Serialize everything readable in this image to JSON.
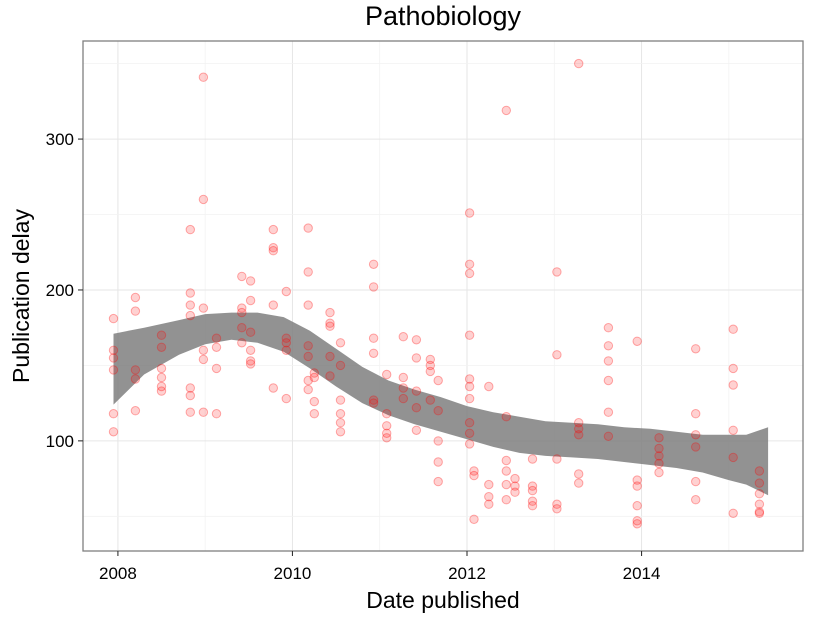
{
  "chart_data": {
    "type": "scatter",
    "title": "Pathobiology",
    "xlabel": "Date published",
    "ylabel": "Publication delay",
    "xlim": [
      2007.6,
      2015.85
    ],
    "ylim": [
      27,
      365
    ],
    "x_ticks": [
      2008,
      2010,
      2012,
      2014
    ],
    "x_tick_labels": [
      "2008",
      "2010",
      "2012",
      "2014"
    ],
    "y_ticks": [
      100,
      200,
      300
    ],
    "y_tick_labels": [
      "100",
      "200",
      "300"
    ],
    "grid": true,
    "point_color": "#ff0000",
    "ribbon_color": "#7f7f7f",
    "points": [
      [
        2007.95,
        181
      ],
      [
        2007.95,
        160
      ],
      [
        2007.95,
        155
      ],
      [
        2007.95,
        147
      ],
      [
        2007.95,
        118
      ],
      [
        2007.95,
        106
      ],
      [
        2008.2,
        195
      ],
      [
        2008.2,
        186
      ],
      [
        2008.2,
        147
      ],
      [
        2008.2,
        141
      ],
      [
        2008.2,
        120
      ],
      [
        2008.5,
        170
      ],
      [
        2008.5,
        162
      ],
      [
        2008.5,
        148
      ],
      [
        2008.5,
        142
      ],
      [
        2008.5,
        136
      ],
      [
        2008.5,
        133
      ],
      [
        2008.83,
        240
      ],
      [
        2008.83,
        198
      ],
      [
        2008.83,
        190
      ],
      [
        2008.83,
        183
      ],
      [
        2008.83,
        135
      ],
      [
        2008.83,
        130
      ],
      [
        2008.83,
        119
      ],
      [
        2008.98,
        341
      ],
      [
        2008.98,
        260
      ],
      [
        2008.98,
        188
      ],
      [
        2008.98,
        160
      ],
      [
        2008.98,
        154
      ],
      [
        2008.98,
        119
      ],
      [
        2009.13,
        168
      ],
      [
        2009.13,
        162
      ],
      [
        2009.13,
        148
      ],
      [
        2009.13,
        118
      ],
      [
        2009.42,
        209
      ],
      [
        2009.42,
        188
      ],
      [
        2009.42,
        185
      ],
      [
        2009.42,
        175
      ],
      [
        2009.42,
        165
      ],
      [
        2009.52,
        206
      ],
      [
        2009.52,
        193
      ],
      [
        2009.52,
        172
      ],
      [
        2009.52,
        160
      ],
      [
        2009.52,
        153
      ],
      [
        2009.52,
        151
      ],
      [
        2009.78,
        240
      ],
      [
        2009.78,
        228
      ],
      [
        2009.78,
        226
      ],
      [
        2009.78,
        190
      ],
      [
        2009.78,
        135
      ],
      [
        2009.93,
        199
      ],
      [
        2009.93,
        168
      ],
      [
        2009.93,
        165
      ],
      [
        2009.93,
        160
      ],
      [
        2009.93,
        128
      ],
      [
        2010.18,
        241
      ],
      [
        2010.18,
        212
      ],
      [
        2010.18,
        190
      ],
      [
        2010.18,
        163
      ],
      [
        2010.18,
        156
      ],
      [
        2010.18,
        140
      ],
      [
        2010.18,
        134
      ],
      [
        2010.25,
        145
      ],
      [
        2010.25,
        142
      ],
      [
        2010.25,
        126
      ],
      [
        2010.25,
        118
      ],
      [
        2010.43,
        185
      ],
      [
        2010.43,
        178
      ],
      [
        2010.43,
        176
      ],
      [
        2010.43,
        156
      ],
      [
        2010.43,
        143
      ],
      [
        2010.55,
        165
      ],
      [
        2010.55,
        150
      ],
      [
        2010.55,
        127
      ],
      [
        2010.55,
        118
      ],
      [
        2010.55,
        112
      ],
      [
        2010.55,
        106
      ],
      [
        2010.93,
        217
      ],
      [
        2010.93,
        202
      ],
      [
        2010.93,
        168
      ],
      [
        2010.93,
        158
      ],
      [
        2010.93,
        127
      ],
      [
        2010.93,
        125
      ],
      [
        2011.08,
        144
      ],
      [
        2011.08,
        118
      ],
      [
        2011.08,
        110
      ],
      [
        2011.08,
        105
      ],
      [
        2011.08,
        102
      ],
      [
        2011.27,
        169
      ],
      [
        2011.27,
        142
      ],
      [
        2011.27,
        135
      ],
      [
        2011.27,
        128
      ],
      [
        2011.42,
        167
      ],
      [
        2011.42,
        155
      ],
      [
        2011.42,
        133
      ],
      [
        2011.42,
        122
      ],
      [
        2011.42,
        107
      ],
      [
        2011.58,
        154
      ],
      [
        2011.58,
        150
      ],
      [
        2011.58,
        146
      ],
      [
        2011.58,
        127
      ],
      [
        2011.67,
        140
      ],
      [
        2011.67,
        120
      ],
      [
        2011.67,
        100
      ],
      [
        2011.67,
        86
      ],
      [
        2011.67,
        73
      ],
      [
        2012.03,
        251
      ],
      [
        2012.03,
        217
      ],
      [
        2012.03,
        211
      ],
      [
        2012.03,
        170
      ],
      [
        2012.03,
        141
      ],
      [
        2012.03,
        136
      ],
      [
        2012.03,
        128
      ],
      [
        2012.03,
        112
      ],
      [
        2012.03,
        105
      ],
      [
        2012.03,
        98
      ],
      [
        2012.08,
        80
      ],
      [
        2012.08,
        77
      ],
      [
        2012.08,
        48
      ],
      [
        2012.25,
        136
      ],
      [
        2012.25,
        71
      ],
      [
        2012.25,
        63
      ],
      [
        2012.25,
        58
      ],
      [
        2012.45,
        319
      ],
      [
        2012.45,
        116
      ],
      [
        2012.45,
        87
      ],
      [
        2012.45,
        80
      ],
      [
        2012.45,
        71
      ],
      [
        2012.45,
        61
      ],
      [
        2012.55,
        75
      ],
      [
        2012.55,
        70
      ],
      [
        2012.55,
        66
      ],
      [
        2012.75,
        88
      ],
      [
        2012.75,
        70
      ],
      [
        2012.75,
        60
      ],
      [
        2012.75,
        57
      ],
      [
        2012.75,
        67
      ],
      [
        2013.03,
        212
      ],
      [
        2013.03,
        157
      ],
      [
        2013.03,
        88
      ],
      [
        2013.03,
        58
      ],
      [
        2013.03,
        55
      ],
      [
        2013.28,
        350
      ],
      [
        2013.28,
        112
      ],
      [
        2013.28,
        108
      ],
      [
        2013.28,
        104
      ],
      [
        2013.28,
        78
      ],
      [
        2013.28,
        72
      ],
      [
        2013.62,
        175
      ],
      [
        2013.62,
        163
      ],
      [
        2013.62,
        153
      ],
      [
        2013.62,
        140
      ],
      [
        2013.62,
        119
      ],
      [
        2013.62,
        103
      ],
      [
        2013.95,
        166
      ],
      [
        2013.95,
        74
      ],
      [
        2013.95,
        70
      ],
      [
        2013.95,
        57
      ],
      [
        2013.95,
        47
      ],
      [
        2013.95,
        45
      ],
      [
        2014.2,
        102
      ],
      [
        2014.2,
        95
      ],
      [
        2014.2,
        90
      ],
      [
        2014.2,
        85
      ],
      [
        2014.2,
        79
      ],
      [
        2014.62,
        161
      ],
      [
        2014.62,
        118
      ],
      [
        2014.62,
        104
      ],
      [
        2014.62,
        96
      ],
      [
        2014.62,
        73
      ],
      [
        2014.62,
        61
      ],
      [
        2015.05,
        174
      ],
      [
        2015.05,
        148
      ],
      [
        2015.05,
        137
      ],
      [
        2015.05,
        107
      ],
      [
        2015.05,
        89
      ],
      [
        2015.05,
        52
      ],
      [
        2015.35,
        80
      ],
      [
        2015.35,
        72
      ],
      [
        2015.35,
        65
      ],
      [
        2015.35,
        58
      ],
      [
        2015.35,
        53
      ],
      [
        2015.35,
        52
      ]
    ],
    "smooth_band": {
      "x": [
        2007.95,
        2008.3,
        2008.7,
        2009.0,
        2009.3,
        2009.6,
        2009.9,
        2010.2,
        2010.5,
        2010.8,
        2011.1,
        2011.4,
        2011.7,
        2012.0,
        2012.3,
        2012.6,
        2012.9,
        2013.2,
        2013.5,
        2013.8,
        2014.1,
        2014.4,
        2014.7,
        2015.0,
        2015.2,
        2015.45
      ],
      "lower": [
        124,
        144,
        157,
        164,
        167,
        165,
        159,
        148,
        136,
        125,
        117,
        111,
        106,
        101,
        96,
        92,
        90,
        89,
        88,
        86,
        84,
        82,
        79,
        74,
        71,
        64
      ],
      "upper": [
        171,
        175,
        180,
        184,
        185,
        185,
        182,
        173,
        161,
        149,
        140,
        134,
        129,
        123,
        119,
        116,
        113,
        112,
        111,
        109,
        108,
        106,
        104,
        104,
        104,
        109
      ]
    }
  }
}
